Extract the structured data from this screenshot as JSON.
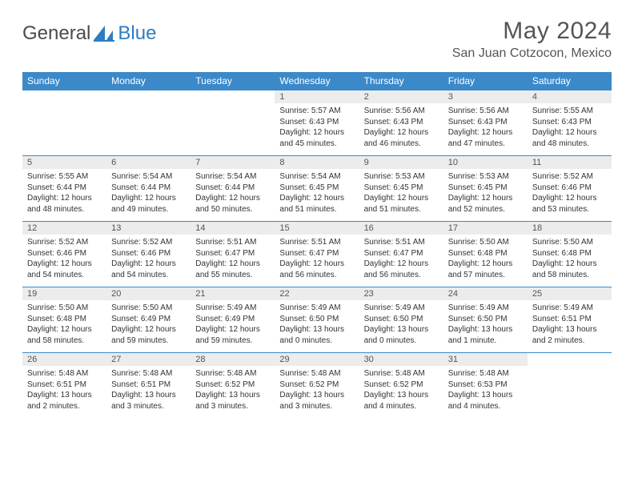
{
  "logo": {
    "text1": "General",
    "text2": "Blue",
    "icon_color": "#2d7dc0"
  },
  "header": {
    "month": "May 2024",
    "location": "San Juan Cotzocon, Mexico"
  },
  "weekdays": [
    "Sunday",
    "Monday",
    "Tuesday",
    "Wednesday",
    "Thursday",
    "Friday",
    "Saturday"
  ],
  "colors": {
    "header_bg": "#3b89c9",
    "header_text": "#ffffff",
    "daynum_bg": "#ececec",
    "row_border": "#3b89c9",
    "body_text": "#333333"
  },
  "weeks": [
    [
      null,
      null,
      null,
      {
        "n": "1",
        "sr": "Sunrise: 5:57 AM",
        "ss": "Sunset: 6:43 PM",
        "dl": "Daylight: 12 hours and 45 minutes."
      },
      {
        "n": "2",
        "sr": "Sunrise: 5:56 AM",
        "ss": "Sunset: 6:43 PM",
        "dl": "Daylight: 12 hours and 46 minutes."
      },
      {
        "n": "3",
        "sr": "Sunrise: 5:56 AM",
        "ss": "Sunset: 6:43 PM",
        "dl": "Daylight: 12 hours and 47 minutes."
      },
      {
        "n": "4",
        "sr": "Sunrise: 5:55 AM",
        "ss": "Sunset: 6:43 PM",
        "dl": "Daylight: 12 hours and 48 minutes."
      }
    ],
    [
      {
        "n": "5",
        "sr": "Sunrise: 5:55 AM",
        "ss": "Sunset: 6:44 PM",
        "dl": "Daylight: 12 hours and 48 minutes."
      },
      {
        "n": "6",
        "sr": "Sunrise: 5:54 AM",
        "ss": "Sunset: 6:44 PM",
        "dl": "Daylight: 12 hours and 49 minutes."
      },
      {
        "n": "7",
        "sr": "Sunrise: 5:54 AM",
        "ss": "Sunset: 6:44 PM",
        "dl": "Daylight: 12 hours and 50 minutes."
      },
      {
        "n": "8",
        "sr": "Sunrise: 5:54 AM",
        "ss": "Sunset: 6:45 PM",
        "dl": "Daylight: 12 hours and 51 minutes."
      },
      {
        "n": "9",
        "sr": "Sunrise: 5:53 AM",
        "ss": "Sunset: 6:45 PM",
        "dl": "Daylight: 12 hours and 51 minutes."
      },
      {
        "n": "10",
        "sr": "Sunrise: 5:53 AM",
        "ss": "Sunset: 6:45 PM",
        "dl": "Daylight: 12 hours and 52 minutes."
      },
      {
        "n": "11",
        "sr": "Sunrise: 5:52 AM",
        "ss": "Sunset: 6:46 PM",
        "dl": "Daylight: 12 hours and 53 minutes."
      }
    ],
    [
      {
        "n": "12",
        "sr": "Sunrise: 5:52 AM",
        "ss": "Sunset: 6:46 PM",
        "dl": "Daylight: 12 hours and 54 minutes."
      },
      {
        "n": "13",
        "sr": "Sunrise: 5:52 AM",
        "ss": "Sunset: 6:46 PM",
        "dl": "Daylight: 12 hours and 54 minutes."
      },
      {
        "n": "14",
        "sr": "Sunrise: 5:51 AM",
        "ss": "Sunset: 6:47 PM",
        "dl": "Daylight: 12 hours and 55 minutes."
      },
      {
        "n": "15",
        "sr": "Sunrise: 5:51 AM",
        "ss": "Sunset: 6:47 PM",
        "dl": "Daylight: 12 hours and 56 minutes."
      },
      {
        "n": "16",
        "sr": "Sunrise: 5:51 AM",
        "ss": "Sunset: 6:47 PM",
        "dl": "Daylight: 12 hours and 56 minutes."
      },
      {
        "n": "17",
        "sr": "Sunrise: 5:50 AM",
        "ss": "Sunset: 6:48 PM",
        "dl": "Daylight: 12 hours and 57 minutes."
      },
      {
        "n": "18",
        "sr": "Sunrise: 5:50 AM",
        "ss": "Sunset: 6:48 PM",
        "dl": "Daylight: 12 hours and 58 minutes."
      }
    ],
    [
      {
        "n": "19",
        "sr": "Sunrise: 5:50 AM",
        "ss": "Sunset: 6:48 PM",
        "dl": "Daylight: 12 hours and 58 minutes."
      },
      {
        "n": "20",
        "sr": "Sunrise: 5:50 AM",
        "ss": "Sunset: 6:49 PM",
        "dl": "Daylight: 12 hours and 59 minutes."
      },
      {
        "n": "21",
        "sr": "Sunrise: 5:49 AM",
        "ss": "Sunset: 6:49 PM",
        "dl": "Daylight: 12 hours and 59 minutes."
      },
      {
        "n": "22",
        "sr": "Sunrise: 5:49 AM",
        "ss": "Sunset: 6:50 PM",
        "dl": "Daylight: 13 hours and 0 minutes."
      },
      {
        "n": "23",
        "sr": "Sunrise: 5:49 AM",
        "ss": "Sunset: 6:50 PM",
        "dl": "Daylight: 13 hours and 0 minutes."
      },
      {
        "n": "24",
        "sr": "Sunrise: 5:49 AM",
        "ss": "Sunset: 6:50 PM",
        "dl": "Daylight: 13 hours and 1 minute."
      },
      {
        "n": "25",
        "sr": "Sunrise: 5:49 AM",
        "ss": "Sunset: 6:51 PM",
        "dl": "Daylight: 13 hours and 2 minutes."
      }
    ],
    [
      {
        "n": "26",
        "sr": "Sunrise: 5:48 AM",
        "ss": "Sunset: 6:51 PM",
        "dl": "Daylight: 13 hours and 2 minutes."
      },
      {
        "n": "27",
        "sr": "Sunrise: 5:48 AM",
        "ss": "Sunset: 6:51 PM",
        "dl": "Daylight: 13 hours and 3 minutes."
      },
      {
        "n": "28",
        "sr": "Sunrise: 5:48 AM",
        "ss": "Sunset: 6:52 PM",
        "dl": "Daylight: 13 hours and 3 minutes."
      },
      {
        "n": "29",
        "sr": "Sunrise: 5:48 AM",
        "ss": "Sunset: 6:52 PM",
        "dl": "Daylight: 13 hours and 3 minutes."
      },
      {
        "n": "30",
        "sr": "Sunrise: 5:48 AM",
        "ss": "Sunset: 6:52 PM",
        "dl": "Daylight: 13 hours and 4 minutes."
      },
      {
        "n": "31",
        "sr": "Sunrise: 5:48 AM",
        "ss": "Sunset: 6:53 PM",
        "dl": "Daylight: 13 hours and 4 minutes."
      },
      null
    ]
  ]
}
